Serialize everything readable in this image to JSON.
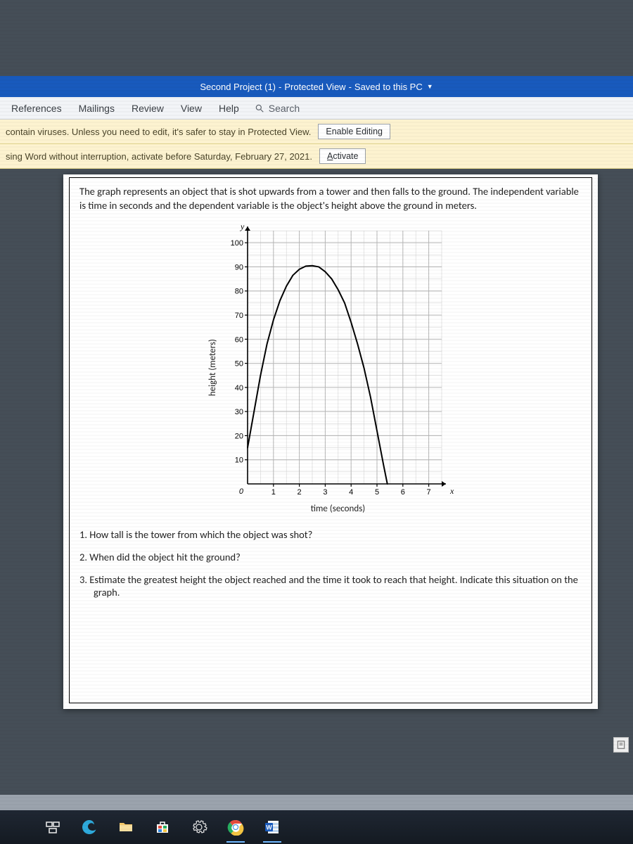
{
  "title": {
    "filename": "Second Project (1)",
    "mode": "Protected View",
    "saved": "Saved to this PC"
  },
  "ribbon": {
    "tabs": [
      "References",
      "Mailings",
      "Review",
      "View",
      "Help"
    ],
    "search_label": "Search"
  },
  "banners": {
    "protected": {
      "text": "contain viruses. Unless you need to edit, it's safer to stay in Protected View.",
      "button": "Enable Editing"
    },
    "activate": {
      "text": "sing Word without interruption, activate before Saturday, February 27, 2021.",
      "button_u": "A",
      "button_rest": "ctivate"
    }
  },
  "document": {
    "problem": "The graph represents an object that is shot upwards from a tower and then falls to the ground. The independent variable is time in seconds and the dependent variable is the object's height above the ground in meters.",
    "chart": {
      "type": "line",
      "xlabel": "time (seconds)",
      "ylabel": "height (meters)",
      "x_letter": "x",
      "y_letter": "y",
      "origin_label": "0",
      "xlim": [
        0,
        7.5
      ],
      "ylim": [
        0,
        105
      ],
      "xticks": [
        1,
        2,
        3,
        4,
        5,
        6,
        7
      ],
      "yticks": [
        10,
        20,
        30,
        40,
        50,
        60,
        70,
        80,
        90,
        100
      ],
      "xtick_major": [
        1,
        2,
        3,
        4,
        5,
        6,
        7
      ],
      "ytick_major": [
        10,
        20,
        30,
        40,
        50,
        60,
        70,
        80,
        90,
        100
      ],
      "minor_x_step": 0.5,
      "minor_y_step": 5,
      "axis_color": "#000000",
      "major_grid_color": "#b8b8b8",
      "minor_grid_color": "#d6d6d6",
      "background_color": "#ffffff",
      "line_color": "#000000",
      "line_width": 2,
      "axis_width": 1.6,
      "tick_fontsize": 11,
      "points": [
        [
          0,
          15
        ],
        [
          0.25,
          30
        ],
        [
          0.5,
          45
        ],
        [
          0.75,
          58
        ],
        [
          1,
          68
        ],
        [
          1.25,
          76
        ],
        [
          1.5,
          82
        ],
        [
          1.75,
          86.5
        ],
        [
          2,
          89
        ],
        [
          2.25,
          90.3
        ],
        [
          2.5,
          90.5
        ],
        [
          2.75,
          90
        ],
        [
          3,
          88
        ],
        [
          3.25,
          85
        ],
        [
          3.5,
          80.5
        ],
        [
          3.75,
          75
        ],
        [
          4,
          67
        ],
        [
          4.25,
          58
        ],
        [
          4.5,
          48
        ],
        [
          4.75,
          36
        ],
        [
          5,
          22
        ],
        [
          5.25,
          8
        ],
        [
          5.4,
          0
        ]
      ]
    },
    "questions": {
      "q1": "1. How tall is the tower from which the object was shot?",
      "q2": "2. When did the object hit the ground?",
      "q3": "3. Estimate the greatest height the object reached and the time it took to reach that height. Indicate this situation on the",
      "q3b": "graph."
    }
  },
  "taskbar": {
    "items": [
      "task-view",
      "edge",
      "file-explorer",
      "store",
      "settings",
      "chrome",
      "word"
    ]
  },
  "colors": {
    "title_bg": "#185abd",
    "banner_bg": "#fdf3d0",
    "desktop_bg": "#454e57"
  }
}
